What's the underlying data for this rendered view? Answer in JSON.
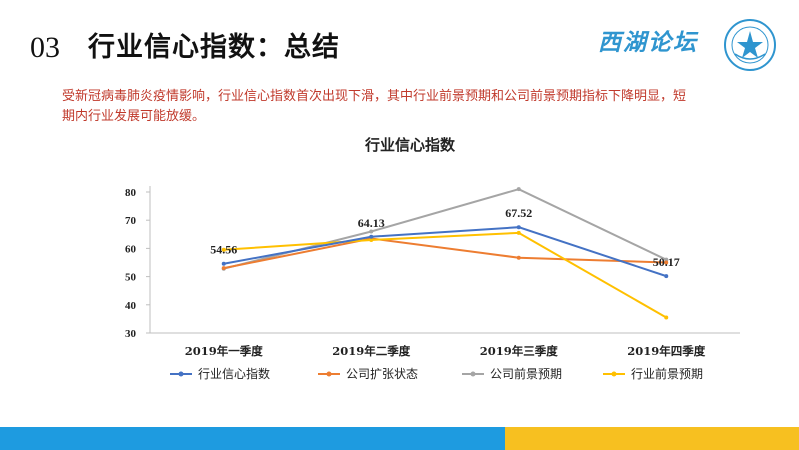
{
  "header": {
    "number": "03",
    "title": "行业信心指数：总结",
    "brand": "西湖论坛"
  },
  "description": "受新冠病毒肺炎疫情影响，行业信心指数首次出现下滑，其中行业前景预期和公司前景预期指标下降明显，短期内行业发展可能放缓。",
  "colors": {
    "series1": "#4472c4",
    "series2": "#ed7d31",
    "series3": "#a5a5a5",
    "series4": "#ffc000",
    "footer_blue": "#1e9be0",
    "footer_yellow": "#f7c020",
    "brand": "#2f95cf",
    "description": "#c0392b"
  },
  "chart_data": {
    "type": "line",
    "title": "行业信心指数",
    "categories": [
      "2019年一季度",
      "2019年二季度",
      "2019年三季度",
      "2019年四季度"
    ],
    "ylim": [
      30,
      80
    ],
    "yticks": [
      30,
      40,
      50,
      60,
      70,
      80
    ],
    "grid": false,
    "legend": "bottom",
    "series": [
      {
        "name": "行业信心指数",
        "values": [
          54.56,
          64.13,
          67.52,
          50.17
        ],
        "labels": [
          "54.56",
          "64.13",
          "67.52",
          "50.17"
        ]
      },
      {
        "name": "公司扩张状态",
        "values": [
          53,
          63.5,
          56.7,
          55
        ]
      },
      {
        "name": "公司前景预期",
        "values": [
          52.8,
          66,
          81,
          56
        ]
      },
      {
        "name": "行业前景预期",
        "values": [
          59.5,
          63,
          65.5,
          35.5
        ]
      }
    ]
  }
}
